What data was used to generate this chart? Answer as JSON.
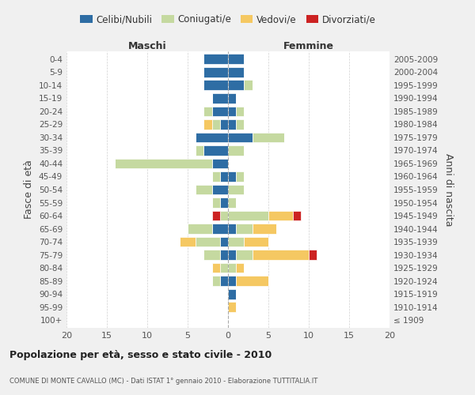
{
  "age_groups": [
    "100+",
    "95-99",
    "90-94",
    "85-89",
    "80-84",
    "75-79",
    "70-74",
    "65-69",
    "60-64",
    "55-59",
    "50-54",
    "45-49",
    "40-44",
    "35-39",
    "30-34",
    "25-29",
    "20-24",
    "15-19",
    "10-14",
    "5-9",
    "0-4"
  ],
  "birth_years": [
    "≤ 1909",
    "1910-1914",
    "1915-1919",
    "1920-1924",
    "1925-1929",
    "1930-1934",
    "1935-1939",
    "1940-1944",
    "1945-1949",
    "1950-1954",
    "1955-1959",
    "1960-1964",
    "1965-1969",
    "1970-1974",
    "1975-1979",
    "1980-1984",
    "1985-1989",
    "1990-1994",
    "1995-1999",
    "2000-2004",
    "2005-2009"
  ],
  "maschi": {
    "celibi": [
      0,
      0,
      0,
      1,
      0,
      1,
      1,
      2,
      0,
      1,
      2,
      1,
      2,
      3,
      4,
      1,
      2,
      2,
      3,
      3,
      3
    ],
    "coniugati": [
      0,
      0,
      0,
      1,
      1,
      2,
      3,
      3,
      1,
      1,
      2,
      1,
      12,
      1,
      0,
      1,
      1,
      0,
      0,
      0,
      0
    ],
    "vedovi": [
      0,
      0,
      0,
      0,
      1,
      0,
      2,
      0,
      0,
      0,
      0,
      0,
      0,
      0,
      0,
      1,
      0,
      0,
      0,
      0,
      0
    ],
    "divorziati": [
      0,
      0,
      0,
      0,
      0,
      0,
      0,
      0,
      1,
      0,
      0,
      0,
      0,
      0,
      0,
      0,
      0,
      0,
      0,
      0,
      0
    ]
  },
  "femmine": {
    "nubili": [
      0,
      0,
      1,
      1,
      0,
      1,
      0,
      1,
      0,
      0,
      0,
      1,
      0,
      0,
      3,
      1,
      1,
      1,
      2,
      2,
      2
    ],
    "coniugate": [
      0,
      0,
      0,
      0,
      1,
      2,
      2,
      2,
      5,
      1,
      2,
      1,
      0,
      2,
      4,
      1,
      1,
      0,
      1,
      0,
      0
    ],
    "vedove": [
      0,
      1,
      0,
      4,
      1,
      7,
      3,
      3,
      3,
      0,
      0,
      0,
      0,
      0,
      0,
      0,
      0,
      0,
      0,
      0,
      0
    ],
    "divorziate": [
      0,
      0,
      0,
      0,
      0,
      1,
      0,
      0,
      1,
      0,
      0,
      0,
      0,
      0,
      0,
      0,
      0,
      0,
      0,
      0,
      0
    ]
  },
  "colors": {
    "celibi_nubili": "#2e6da4",
    "coniugati": "#c5d9a0",
    "vedovi": "#f5c862",
    "divorziati": "#cc2222"
  },
  "xlim": 20,
  "title": "Popolazione per età, sesso e stato civile - 2010",
  "subtitle": "COMUNE DI MONTE CAVALLO (MC) - Dati ISTAT 1° gennaio 2010 - Elaborazione TUTTITALIA.IT",
  "ylabel": "Fasce di età",
  "ylabel_right": "Anni di nascita",
  "xlabel_left": "Maschi",
  "xlabel_right": "Femmine",
  "bg_color": "#f0f0f0",
  "plot_bg": "#ffffff"
}
